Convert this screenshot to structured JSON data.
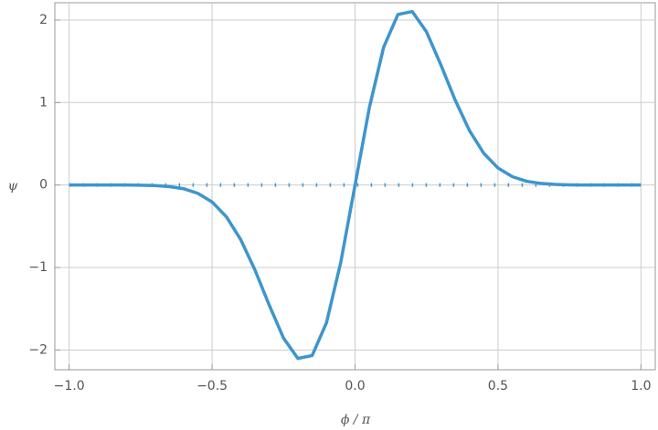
{
  "chart_data": {
    "type": "line",
    "x_label": "ϕ / π",
    "y_label": "ψ",
    "x": [
      -1,
      -0.95,
      -0.9,
      -0.85,
      -0.8,
      -0.75,
      -0.7,
      -0.65,
      -0.6,
      -0.55,
      -0.5,
      -0.45,
      -0.4,
      -0.35,
      -0.3,
      -0.25,
      -0.2,
      -0.15,
      -0.1,
      -0.05,
      0,
      0.05,
      0.1,
      0.15,
      0.2,
      0.25,
      0.3,
      0.35,
      0.4,
      0.45,
      0.5,
      0.55,
      0.6,
      0.65,
      0.7,
      0.75,
      0.8,
      0.85,
      0.9,
      0.95,
      1
    ],
    "values": [
      0,
      0,
      0,
      0,
      0,
      -0.002,
      -0.007,
      -0.019,
      -0.045,
      -0.101,
      -0.206,
      -0.385,
      -0.661,
      -1.031,
      -1.458,
      -1.857,
      -2.103,
      -2.068,
      -1.671,
      -0.938,
      0,
      0.938,
      1.671,
      2.068,
      2.103,
      1.857,
      1.458,
      1.031,
      0.661,
      0.385,
      0.206,
      0.101,
      0.045,
      0.019,
      0.007,
      0.002,
      0,
      0,
      0,
      0,
      0
    ],
    "color": "#3e95cd",
    "reference_line": {
      "y": 0,
      "style": "dotted"
    },
    "xlim": [
      -1.05,
      1.05
    ],
    "ylim": [
      -2.24,
      2.21
    ],
    "xticks": [
      {
        "value": -1,
        "label": "−1.0"
      },
      {
        "value": -0.5,
        "label": "−0.5"
      },
      {
        "value": 0,
        "label": "0.0"
      },
      {
        "value": 0.5,
        "label": "0.5"
      },
      {
        "value": 1,
        "label": "1.0"
      }
    ],
    "yticks": [
      {
        "value": -2,
        "label": "−2"
      },
      {
        "value": -1,
        "label": "−1"
      },
      0,
      1,
      2
    ],
    "grid": true
  }
}
